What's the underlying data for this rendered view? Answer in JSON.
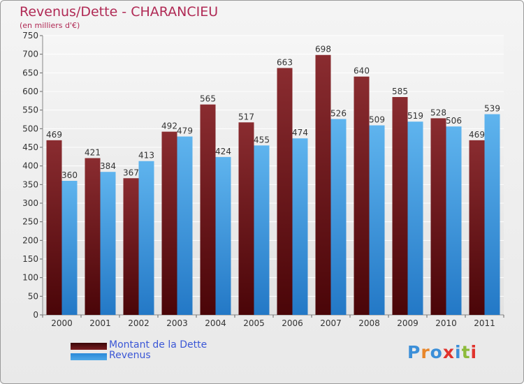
{
  "chart_data": {
    "type": "bar",
    "title": "Revenus/Dette - CHARANCIEU",
    "subtitle": "(en milliers d'€)",
    "categories": [
      "2000",
      "2001",
      "2002",
      "2003",
      "2004",
      "2005",
      "2006",
      "2007",
      "2008",
      "2009",
      "2010",
      "2011"
    ],
    "series": [
      {
        "name": "Montant de la Dette",
        "color": "#7a1f22",
        "values": [
          469,
          421,
          367,
          492,
          565,
          517,
          663,
          698,
          640,
          585,
          528,
          469
        ]
      },
      {
        "name": "Revenus",
        "color": "#4ea8e8",
        "values": [
          360,
          384,
          413,
          479,
          424,
          455,
          474,
          526,
          509,
          519,
          506,
          539
        ]
      }
    ],
    "ylim": [
      0,
      750
    ],
    "yticks": [
      0,
      50,
      100,
      150,
      200,
      250,
      300,
      350,
      400,
      450,
      500,
      550,
      600,
      650,
      700,
      750
    ],
    "grid": true,
    "legend_position": "bottom-left"
  },
  "logo": {
    "letters": [
      "P",
      "r",
      "o",
      "x",
      "i",
      "t",
      "i"
    ],
    "colors": [
      "#3c8fd8",
      "#e8862a",
      "#3c8fd8",
      "#e0332d",
      "#3c8fd8",
      "#8dbb3a",
      "#e0332d"
    ]
  }
}
